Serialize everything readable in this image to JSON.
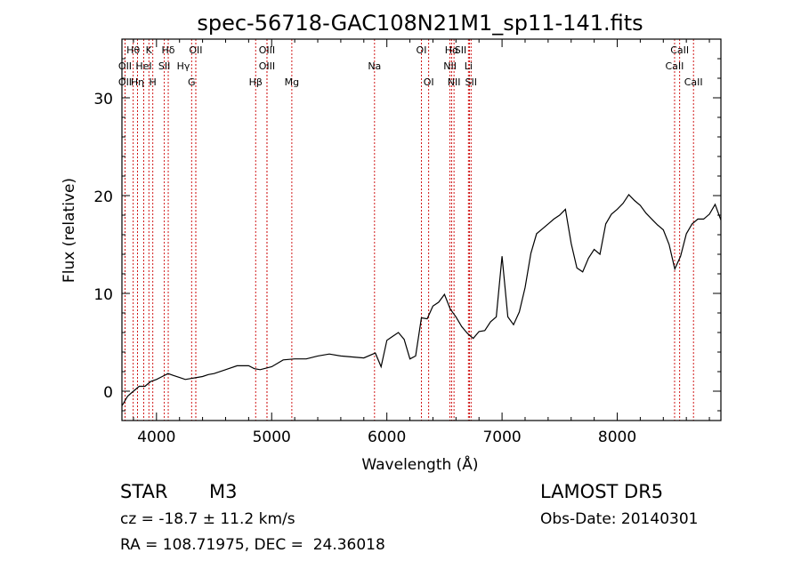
{
  "chart_data": {
    "type": "line",
    "title": "spec-56718-GAC108N21M1_sp11-141.fits",
    "xlabel": "Wavelength (Å)",
    "ylabel": "Flux (relative)",
    "xlim": [
      3700,
      8900
    ],
    "ylim": [
      -3,
      36
    ],
    "x_ticks": [
      4000,
      5000,
      6000,
      7000,
      8000
    ],
    "y_ticks": [
      0,
      10,
      20,
      30
    ],
    "x_tick_labels": [
      "4000",
      "5000",
      "6000",
      "7000",
      "8000"
    ],
    "y_tick_labels": [
      "0",
      "10",
      "20",
      "30"
    ],
    "grid": false,
    "line_color": "#000000",
    "marker_color": "#cc0000",
    "series": [
      {
        "x": [
          3700,
          3750,
          3800,
          3850,
          3900,
          3950,
          4000,
          4050,
          4100,
          4150,
          4200,
          4250,
          4300,
          4350,
          4400,
          4450,
          4500,
          4600,
          4700,
          4800,
          4850,
          4900,
          5000,
          5100,
          5200,
          5300,
          5400,
          5500,
          5600,
          5700,
          5800,
          5900,
          5950,
          6000,
          6050,
          6100,
          6150,
          6200,
          6250,
          6300,
          6350,
          6400,
          6450,
          6500,
          6550,
          6600,
          6650,
          6700,
          6750,
          6800,
          6850,
          6900,
          6950,
          7000,
          7050,
          7100,
          7150,
          7200,
          7250,
          7300,
          7350,
          7400,
          7450,
          7500,
          7550,
          7600,
          7650,
          7700,
          7750,
          7800,
          7850,
          7900,
          7950,
          8000,
          8050,
          8100,
          8150,
          8200,
          8250,
          8300,
          8350,
          8400,
          8450,
          8500,
          8550,
          8600,
          8650,
          8700,
          8750,
          8800,
          8850,
          8900
        ],
        "y": [
          -1.5,
          -0.5,
          0,
          0.5,
          0.5,
          1,
          1.2,
          1.5,
          1.8,
          1.6,
          1.4,
          1.2,
          1.3,
          1.4,
          1.5,
          1.7,
          1.8,
          2.2,
          2.6,
          2.6,
          2.3,
          2.2,
          2.5,
          3.2,
          3.3,
          3.3,
          3.6,
          3.8,
          3.6,
          3.5,
          3.4,
          3.9,
          2.5,
          5.2,
          5.6,
          6.0,
          5.3,
          3.3,
          3.6,
          7.5,
          7.4,
          8.7,
          9.1,
          9.9,
          8.4,
          7.6,
          6.6,
          5.9,
          5.4,
          6.1,
          6.2,
          7.1,
          7.6,
          13.8,
          7.6,
          6.8,
          8.1,
          10.6,
          14.1,
          16.1,
          16.6,
          17.1,
          17.6,
          18.0,
          18.6,
          15.1,
          12.6,
          12.2,
          13.6,
          14.5,
          14.0,
          17.1,
          18.1,
          18.6,
          19.2,
          20.1,
          19.5,
          19.0,
          18.2,
          17.6,
          17.0,
          16.5,
          15.0,
          12.5,
          13.8,
          16.1,
          17.1,
          17.6,
          17.6,
          18.1,
          19.1,
          17.5
        ]
      }
    ],
    "lines": [
      {
        "name": "Hθ",
        "x": 3798,
        "row": 0,
        "dx": 0
      },
      {
        "name": "K",
        "x": 3934,
        "row": 0,
        "dx": 0
      },
      {
        "name": "Hδ",
        "x": 4102,
        "row": 0,
        "dx": 0
      },
      {
        "name": "OII",
        "x": 4341,
        "row": 0,
        "dx": 0
      },
      {
        "name": "OIII",
        "x": 4959,
        "row": 0,
        "dx": 0
      },
      {
        "name": "OI",
        "x": 6300,
        "row": 0,
        "dx": 0
      },
      {
        "name": "Hα",
        "x": 6563,
        "row": 0,
        "dx": 0
      },
      {
        "name": "SII",
        "x": 6717,
        "row": 0,
        "dx": -10
      },
      {
        "name": "CaII",
        "x": 8542,
        "row": 0,
        "dx": 0
      },
      {
        "name": "OII",
        "x": 3727,
        "row": 1,
        "dx": 0
      },
      {
        "name": "HeI",
        "x": 3889,
        "row": 1,
        "dx": 0
      },
      {
        "name": "SII",
        "x": 4068,
        "row": 1,
        "dx": 0
      },
      {
        "name": "Hγ",
        "x": 4341,
        "row": 1,
        "dx": -14
      },
      {
        "name": "OIII",
        "x": 4959,
        "row": 1,
        "dx": 0
      },
      {
        "name": "NII",
        "x": 6548,
        "row": 1,
        "dx": 0
      },
      {
        "name": "Li",
        "x": 6708,
        "row": 1,
        "dx": 0
      },
      {
        "name": "CaII",
        "x": 8498,
        "row": 1,
        "dx": 0
      },
      {
        "name": "OII",
        "x": 3727,
        "row": 2,
        "dx": 0
      },
      {
        "name": "Hη",
        "x": 3835,
        "row": 2,
        "dx": 0
      },
      {
        "name": "H",
        "x": 3968,
        "row": 2,
        "dx": 0
      },
      {
        "name": "G",
        "x": 4305,
        "row": 2,
        "dx": 0
      },
      {
        "name": "Hβ",
        "x": 4861,
        "row": 2,
        "dx": 0
      },
      {
        "name": "Mg",
        "x": 5175,
        "row": 2,
        "dx": 0
      },
      {
        "name": "Na",
        "x": 5893,
        "row": 1,
        "dx": 0
      },
      {
        "name": "OI",
        "x": 6363,
        "row": 2,
        "dx": 0
      },
      {
        "name": "NII",
        "x": 6583,
        "row": 2,
        "dx": 0
      },
      {
        "name": "SII",
        "x": 6731,
        "row": 2,
        "dx": 0
      },
      {
        "name": "CaII",
        "x": 8662,
        "row": 2,
        "dx": 0
      }
    ]
  },
  "info": {
    "object_type": "STAR",
    "subclass": "M3",
    "survey": "LAMOST DR5",
    "redshift": "cz = -18.7 ± 11.2 km/s",
    "obs_date": "Obs-Date: 20140301",
    "coords": "RA = 108.71975, DEC =  24.36018"
  }
}
